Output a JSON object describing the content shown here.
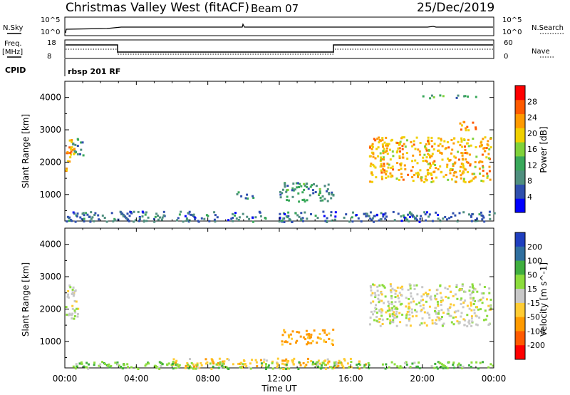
{
  "header": {
    "station": "Christmas Valley West (fitACF)",
    "beam": "Beam 07",
    "date": "25/Dec/2019"
  },
  "strips": {
    "nsky_label": "N.Sky",
    "nsky_ticks": [
      "10^5",
      "10^0"
    ],
    "nsearch_label": "N.Search",
    "nsearch_ticks": [
      "10^5",
      "10^0"
    ],
    "freq_label": "Freq.",
    "freq_unit": "[MHz]",
    "freq_ticks": [
      "18",
      "8"
    ],
    "nave_label": "Nave",
    "nave_ticks": [
      "60",
      "0"
    ],
    "cpid_label": "CPID",
    "cpid_value": "rbsp 201 RF"
  },
  "colors": {
    "power": [
      "#0000ff",
      "#2f4fae",
      "#4f8f7f",
      "#39a85a",
      "#7fd23a",
      "#f0d000",
      "#ff9a00",
      "#ff5a00",
      "#ff0000"
    ],
    "velocity": [
      "#ff0000",
      "#ff5a00",
      "#ff9a00",
      "#ffcc33",
      "#c8c8c8",
      "#8cdc3c",
      "#3fae3f",
      "#2f6f9f",
      "#1f3fbf"
    ]
  },
  "chart_data": [
    {
      "type": "heatmap",
      "title": "",
      "xlabel": "Time UT",
      "ylabel": "Slant Range [km]",
      "colorbar_label": "Power [dB]",
      "colorbar_ticks": [
        "4",
        "8",
        "12",
        "16",
        "20",
        "24",
        "28"
      ],
      "x_ticks": [
        "00:00",
        "04:00",
        "08:00",
        "12:00",
        "16:00",
        "20:00",
        "00:00"
      ],
      "y_ticks": [
        "1000",
        "2000",
        "3000",
        "4000"
      ],
      "xlim": [
        0,
        24
      ],
      "ylim": [
        180,
        4500
      ],
      "regions": [
        {
          "t": [
            0.0,
            0.5
          ],
          "r": [
            1700,
            2800
          ],
          "level": 26
        },
        {
          "t": [
            0.4,
            1.0
          ],
          "r": [
            2200,
            2800
          ],
          "level": 10
        },
        {
          "t": [
            12.0,
            15.0
          ],
          "r": [
            800,
            1400
          ],
          "level": 12
        },
        {
          "t": [
            9.5,
            10.5
          ],
          "r": [
            900,
            1100
          ],
          "level": 10
        },
        {
          "t": [
            17.0,
            23.8
          ],
          "r": [
            1400,
            2800
          ],
          "level": 24
        },
        {
          "t": [
            22.0,
            23.0
          ],
          "r": [
            3000,
            3300
          ],
          "level": 26
        },
        {
          "t": [
            20.0,
            23.0
          ],
          "r": [
            4000,
            4100
          ],
          "level": 12
        },
        {
          "t": [
            0.0,
            24.0
          ],
          "r": [
            180,
            500
          ],
          "level": 8
        }
      ]
    },
    {
      "type": "heatmap",
      "title": "",
      "xlabel": "Time UT",
      "ylabel": "Slant Range [km]",
      "colorbar_label": "Velocity [m s^-1]",
      "colorbar_ticks": [
        "200",
        "100",
        "50",
        "15",
        "-15",
        "-50",
        "-100",
        "-200"
      ],
      "x_ticks": [
        "00:00",
        "04:00",
        "08:00",
        "12:00",
        "16:00",
        "20:00",
        "00:00"
      ],
      "y_ticks": [
        "1000",
        "2000",
        "3000",
        "4000"
      ],
      "xlim": [
        0,
        24
      ],
      "ylim": [
        180,
        4500
      ],
      "regions": [
        {
          "t": [
            0.0,
            0.8
          ],
          "r": [
            1700,
            2800
          ],
          "level": 0
        },
        {
          "t": [
            12.0,
            15.0
          ],
          "r": [
            900,
            1400
          ],
          "level": -60
        },
        {
          "t": [
            17.0,
            23.8
          ],
          "r": [
            1500,
            2800
          ],
          "level": 0
        },
        {
          "t": [
            6.0,
            17.0
          ],
          "r": [
            180,
            500
          ],
          "level": -40
        },
        {
          "t": [
            0.0,
            24.0
          ],
          "r": [
            180,
            400
          ],
          "level": 40
        }
      ]
    }
  ]
}
